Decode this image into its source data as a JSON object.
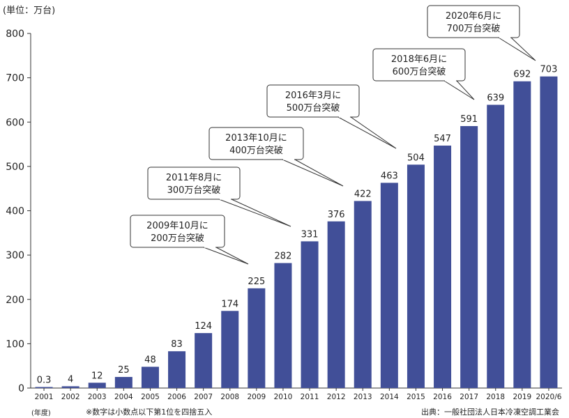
{
  "unit_label": "(単位：万台)",
  "year_suffix_label": "(年度)",
  "note": "※数字は小数点以下第1位を四捨五入",
  "source": "出典：一般社団法人日本冷凍空調工業会",
  "colors": {
    "bar": "#414f98",
    "axis": "#333333",
    "callout_border": "#333333"
  },
  "chart_data": {
    "type": "bar",
    "title": "",
    "xlabel": "",
    "ylabel": "",
    "ylim": [
      0,
      800
    ],
    "yticks": [
      0,
      100,
      200,
      300,
      400,
      500,
      600,
      700,
      800
    ],
    "grid": false,
    "categories": [
      "2001",
      "2002",
      "2003",
      "2004",
      "2005",
      "2006",
      "2007",
      "2008",
      "2009",
      "2010",
      "2011",
      "2012",
      "2013",
      "2014",
      "2015",
      "2016",
      "2017",
      "2018",
      "2019",
      "2020/6"
    ],
    "values": [
      0.3,
      4,
      12,
      25,
      48,
      83,
      124,
      174,
      225,
      282,
      331,
      376,
      422,
      463,
      504,
      547,
      591,
      639,
      692,
      703
    ],
    "value_labels": [
      "0.3",
      "4",
      "12",
      "25",
      "48",
      "83",
      "124",
      "174",
      "225",
      "282",
      "331",
      "376",
      "422",
      "463",
      "504",
      "547",
      "591",
      "639",
      "692",
      "703"
    ],
    "annotations": [
      {
        "line1": "2009年10月に",
        "line2": "200万台突破",
        "target_category": "2009"
      },
      {
        "line1": "2011年8月に",
        "line2": "300万台突破",
        "target_category": "2011"
      },
      {
        "line1": "2013年10月に",
        "line2": "400万台突破",
        "target_category": "2013"
      },
      {
        "line1": "2016年3月に",
        "line2": "500万台突破",
        "target_category": "2015"
      },
      {
        "line1": "2018年6月に",
        "line2": "600万台突破",
        "target_category": "2018"
      },
      {
        "line1": "2020年6月に",
        "line2": "700万台突破",
        "target_category": "2020/6"
      }
    ]
  }
}
